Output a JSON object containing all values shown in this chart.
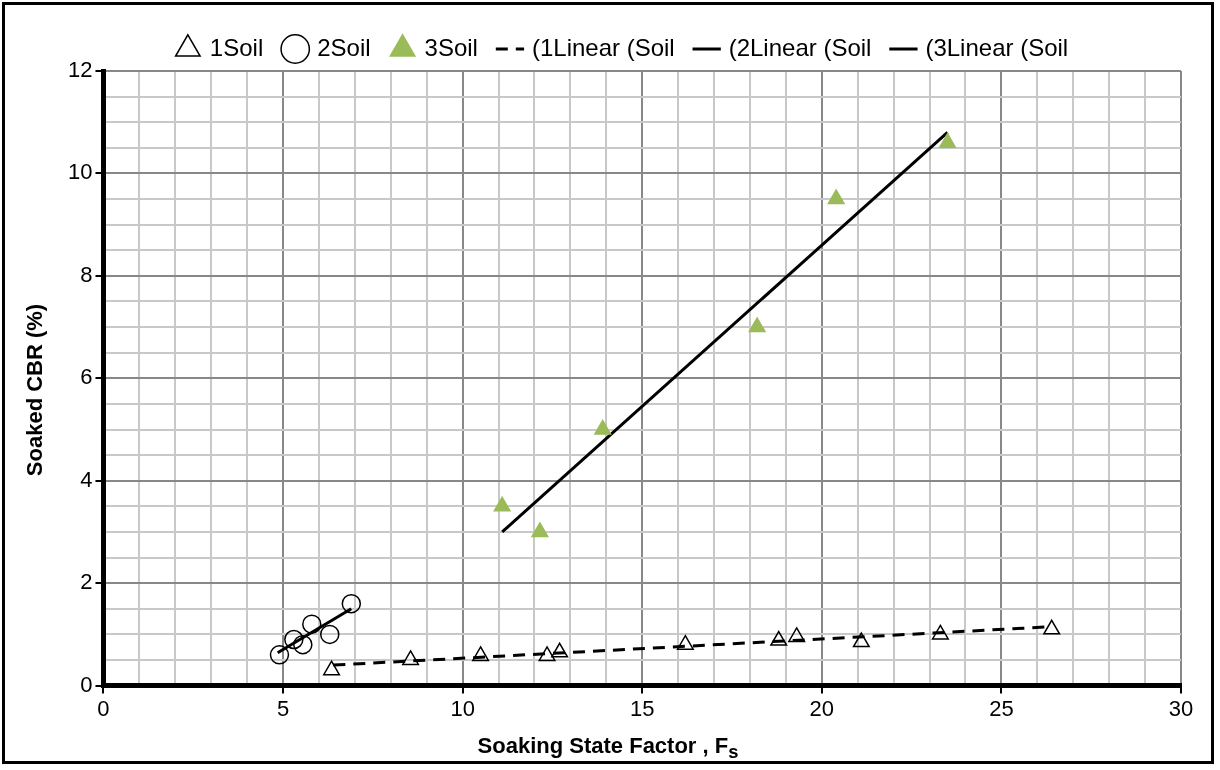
{
  "chart_data": {
    "type": "scatter",
    "xlabel": "Soaking State Factor , F$_{s}$",
    "ylabel": "Soaked CBR (%)",
    "xlim": [
      0,
      30
    ],
    "xticks": [
      0,
      {
        "value": 1,
        "label": null
      },
      {
        "value": 2,
        "label": null
      },
      {
        "value": 3,
        "label": null
      },
      {
        "value": 4,
        "label": null
      },
      5,
      {
        "value": 6,
        "label": null
      },
      {
        "value": 7,
        "label": null
      },
      {
        "value": 8,
        "label": null
      },
      {
        "value": 9,
        "label": null
      },
      10,
      {
        "value": 11,
        "label": null
      },
      {
        "value": 12,
        "label": null
      },
      {
        "value": 13,
        "label": null
      },
      {
        "value": 14,
        "label": null
      },
      15,
      {
        "value": 16,
        "label": null
      },
      {
        "value": 17,
        "label": null
      },
      {
        "value": 18,
        "label": null
      },
      {
        "value": 19,
        "label": null
      },
      20,
      {
        "value": 21,
        "label": null
      },
      {
        "value": 22,
        "label": null
      },
      {
        "value": 23,
        "label": null
      },
      {
        "value": 24,
        "label": null
      },
      25,
      {
        "value": 26,
        "label": null
      },
      {
        "value": 27,
        "label": null
      },
      {
        "value": 28,
        "label": null
      },
      {
        "value": 29,
        "label": null
      },
      30
    ],
    "ylim": [
      0,
      12
    ],
    "yticks": [
      0,
      {
        "value": 0.5,
        "label": null
      },
      {
        "value": 1,
        "label": null
      },
      {
        "value": 1.5,
        "label": null
      },
      2,
      {
        "value": 2.5,
        "label": null
      },
      {
        "value": 3,
        "label": null
      },
      {
        "value": 3.5,
        "label": null
      },
      4,
      {
        "value": 4.5,
        "label": null
      },
      {
        "value": 5,
        "label": null
      },
      {
        "value": 5.5,
        "label": null
      },
      6,
      {
        "value": 6.5,
        "label": null
      },
      {
        "value": 7,
        "label": null
      },
      {
        "value": 7.5,
        "label": null
      },
      8,
      {
        "value": 8.5,
        "label": null
      },
      {
        "value": 9,
        "label": null
      },
      {
        "value": 9.5,
        "label": null
      },
      10,
      {
        "value": 10.5,
        "label": null
      },
      {
        "value": 11,
        "label": null
      },
      {
        "value": 11.5,
        "label": null
      },
      12
    ],
    "grid": true,
    "legend": "top",
    "series": [
      {
        "name": "1Soil",
        "type": "scatter",
        "marker": "triangle",
        "color": "#000000",
        "x": [
          6.35,
          8.55,
          10.5,
          12.35,
          12.7,
          16.2,
          18.8,
          19.3,
          21.1,
          23.3,
          26.4
        ],
        "values": [
          0.3,
          0.5,
          0.58,
          0.58,
          0.65,
          0.8,
          0.88,
          0.95,
          0.85,
          1.0,
          1.1
        ]
      },
      {
        "name": "2Soil",
        "type": "scatter",
        "marker": "circle",
        "color": "#000000",
        "x": [
          4.9,
          5.3,
          5.55,
          5.8,
          6.3,
          6.9
        ],
        "values": [
          0.6,
          0.9,
          0.8,
          1.2,
          1.0,
          1.6
        ]
      },
      {
        "name": "3Soil",
        "type": "scatter",
        "marker": "triangle",
        "color": "#9bbb59",
        "x": [
          11.1,
          12.15,
          13.9,
          18.2,
          20.4,
          23.5
        ],
        "values": [
          3.5,
          3.0,
          5.0,
          7.0,
          9.5,
          10.6
        ]
      },
      {
        "name": "(1Linear (Soil",
        "type": "line",
        "marker": "none",
        "line_style": "dashed",
        "color": "#000000",
        "x": [
          6.4,
          26.4
        ],
        "values": [
          0.4,
          1.15
        ]
      },
      {
        "name": "(2Linear (Soil",
        "type": "line",
        "marker": "none",
        "line_style": "solid",
        "color": "#000000",
        "x": [
          4.85,
          6.9
        ],
        "values": [
          0.64,
          1.5
        ]
      },
      {
        "name": "(3Linear (Soil",
        "type": "line",
        "marker": "none",
        "line_style": "solid",
        "color": "#000000",
        "x": [
          11.1,
          23.5
        ],
        "values": [
          3.0,
          10.8
        ]
      }
    ]
  }
}
